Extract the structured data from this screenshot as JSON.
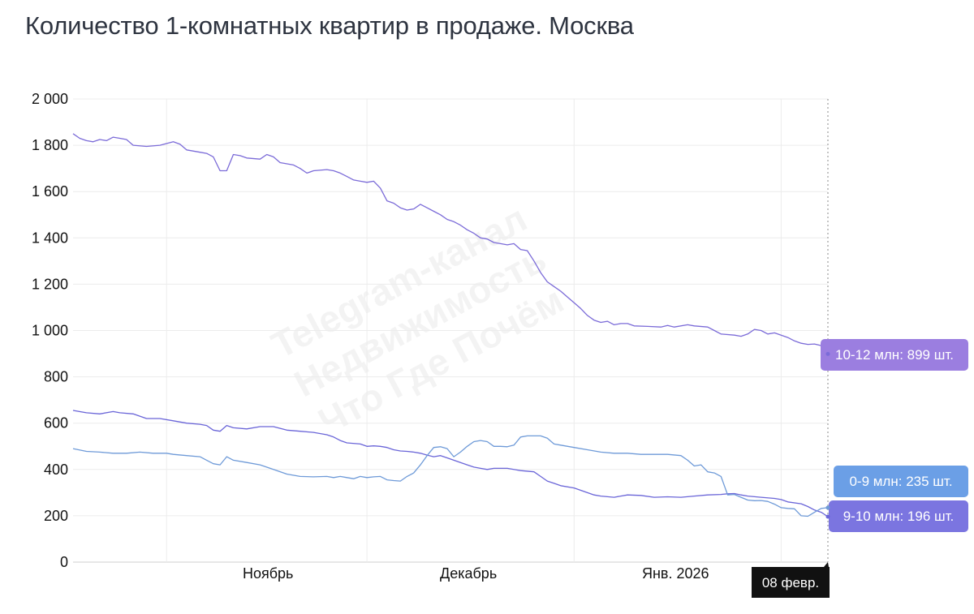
{
  "title": "Количество 1-комнатных квартир в продаже. Москва",
  "watermark": [
    "Telegram-канал",
    "Недвижимость",
    "Что Где Почём"
  ],
  "crosshair_label": "08 февр.",
  "chart_data": {
    "type": "line",
    "title": "Количество 1-комнатных квартир в продаже. Москва",
    "xlabel": "",
    "ylabel": "",
    "ylim": [
      0,
      2000
    ],
    "yticks": [
      "0",
      "200",
      "400",
      "600",
      "800",
      "1 000",
      "1 200",
      "1 400",
      "1 600",
      "1 800",
      "2 000"
    ],
    "xticks": [
      {
        "label": "Ноябрь",
        "date": "2025-11-01"
      },
      {
        "label": "Декабрь",
        "date": "2025-12-01"
      },
      {
        "label": "Янв. 2026",
        "date": "2026-01-01"
      }
    ],
    "x_start": "2025-10-18",
    "x_end": "2026-02-08",
    "grid": true,
    "series": [
      {
        "name": "10-12 млн",
        "color": "#7b6bd8",
        "label": "10-12 млн: 899 шт.",
        "label_color": "#9b7ee0",
        "points": [
          [
            "2025-10-18",
            1850
          ],
          [
            "2025-10-19",
            1830
          ],
          [
            "2025-10-20",
            1820
          ],
          [
            "2025-10-21",
            1815
          ],
          [
            "2025-10-22",
            1825
          ],
          [
            "2025-10-23",
            1820
          ],
          [
            "2025-10-24",
            1835
          ],
          [
            "2025-10-25",
            1830
          ],
          [
            "2025-10-26",
            1825
          ],
          [
            "2025-10-27",
            1800
          ],
          [
            "2025-10-29",
            1795
          ],
          [
            "2025-10-31",
            1800
          ],
          [
            "2025-11-02",
            1815
          ],
          [
            "2025-11-03",
            1805
          ],
          [
            "2025-11-04",
            1780
          ],
          [
            "2025-11-06",
            1770
          ],
          [
            "2025-11-07",
            1765
          ],
          [
            "2025-11-08",
            1750
          ],
          [
            "2025-11-09",
            1690
          ],
          [
            "2025-11-10",
            1690
          ],
          [
            "2025-11-11",
            1760
          ],
          [
            "2025-11-12",
            1755
          ],
          [
            "2025-11-13",
            1745
          ],
          [
            "2025-11-15",
            1740
          ],
          [
            "2025-11-16",
            1760
          ],
          [
            "2025-11-17",
            1750
          ],
          [
            "2025-11-18",
            1725
          ],
          [
            "2025-11-20",
            1715
          ],
          [
            "2025-11-21",
            1700
          ],
          [
            "2025-11-22",
            1680
          ],
          [
            "2025-11-23",
            1690
          ],
          [
            "2025-11-25",
            1695
          ],
          [
            "2025-11-26",
            1690
          ],
          [
            "2025-11-27",
            1680
          ],
          [
            "2025-11-28",
            1665
          ],
          [
            "2025-11-29",
            1650
          ],
          [
            "2025-11-30",
            1645
          ],
          [
            "2025-12-01",
            1640
          ],
          [
            "2025-12-02",
            1645
          ],
          [
            "2025-12-03",
            1615
          ],
          [
            "2025-12-04",
            1560
          ],
          [
            "2025-12-05",
            1550
          ],
          [
            "2025-12-06",
            1530
          ],
          [
            "2025-12-07",
            1520
          ],
          [
            "2025-12-08",
            1525
          ],
          [
            "2025-12-09",
            1545
          ],
          [
            "2025-12-10",
            1530
          ],
          [
            "2025-12-11",
            1515
          ],
          [
            "2025-12-12",
            1500
          ],
          [
            "2025-12-13",
            1480
          ],
          [
            "2025-12-14",
            1470
          ],
          [
            "2025-12-15",
            1455
          ],
          [
            "2025-12-16",
            1435
          ],
          [
            "2025-12-17",
            1420
          ],
          [
            "2025-12-18",
            1400
          ],
          [
            "2025-12-19",
            1395
          ],
          [
            "2025-12-20",
            1380
          ],
          [
            "2025-12-21",
            1375
          ],
          [
            "2025-12-22",
            1370
          ],
          [
            "2025-12-23",
            1375
          ],
          [
            "2025-12-24",
            1350
          ],
          [
            "2025-12-25",
            1345
          ],
          [
            "2025-12-26",
            1300
          ],
          [
            "2025-12-27",
            1250
          ],
          [
            "2025-12-28",
            1210
          ],
          [
            "2025-12-29",
            1190
          ],
          [
            "2025-12-30",
            1170
          ],
          [
            "2025-12-31",
            1145
          ],
          [
            "2026-01-01",
            1120
          ],
          [
            "2026-01-02",
            1095
          ],
          [
            "2026-01-03",
            1065
          ],
          [
            "2026-01-04",
            1045
          ],
          [
            "2026-01-05",
            1035
          ],
          [
            "2026-01-06",
            1040
          ],
          [
            "2026-01-07",
            1025
          ],
          [
            "2026-01-08",
            1030
          ],
          [
            "2026-01-09",
            1030
          ],
          [
            "2026-01-10",
            1020
          ],
          [
            "2026-01-12",
            1018
          ],
          [
            "2026-01-14",
            1015
          ],
          [
            "2026-01-15",
            1022
          ],
          [
            "2026-01-16",
            1015
          ],
          [
            "2026-01-18",
            1025
          ],
          [
            "2026-01-19",
            1020
          ],
          [
            "2026-01-21",
            1015
          ],
          [
            "2026-01-22",
            1000
          ],
          [
            "2026-01-23",
            985
          ],
          [
            "2026-01-25",
            980
          ],
          [
            "2026-01-26",
            975
          ],
          [
            "2026-01-27",
            985
          ],
          [
            "2026-01-28",
            1005
          ],
          [
            "2026-01-29",
            1000
          ],
          [
            "2026-01-30",
            985
          ],
          [
            "2026-01-31",
            990
          ],
          [
            "2026-02-01",
            980
          ],
          [
            "2026-02-02",
            970
          ],
          [
            "2026-02-03",
            955
          ],
          [
            "2026-02-04",
            945
          ],
          [
            "2026-02-05",
            940
          ],
          [
            "2026-02-06",
            942
          ],
          [
            "2026-02-07",
            935
          ],
          [
            "2026-02-08",
            899
          ]
        ]
      },
      {
        "name": "9-10 млн",
        "color": "#6a65d8",
        "label": "9-10 млн: 196 шт.",
        "label_color": "#7b75e0",
        "points": [
          [
            "2025-10-18",
            655
          ],
          [
            "2025-10-20",
            645
          ],
          [
            "2025-10-22",
            640
          ],
          [
            "2025-10-24",
            650
          ],
          [
            "2025-10-25",
            645
          ],
          [
            "2025-10-27",
            640
          ],
          [
            "2025-10-29",
            620
          ],
          [
            "2025-10-31",
            620
          ],
          [
            "2025-11-02",
            610
          ],
          [
            "2025-11-04",
            600
          ],
          [
            "2025-11-06",
            595
          ],
          [
            "2025-11-07",
            590
          ],
          [
            "2025-11-08",
            570
          ],
          [
            "2025-11-09",
            565
          ],
          [
            "2025-11-10",
            590
          ],
          [
            "2025-11-11",
            580
          ],
          [
            "2025-11-13",
            575
          ],
          [
            "2025-11-15",
            585
          ],
          [
            "2025-11-17",
            585
          ],
          [
            "2025-11-19",
            570
          ],
          [
            "2025-11-21",
            565
          ],
          [
            "2025-11-23",
            560
          ],
          [
            "2025-11-25",
            550
          ],
          [
            "2025-11-26",
            540
          ],
          [
            "2025-11-27",
            525
          ],
          [
            "2025-11-28",
            515
          ],
          [
            "2025-11-30",
            510
          ],
          [
            "2025-12-01",
            500
          ],
          [
            "2025-12-02",
            502
          ],
          [
            "2025-12-03",
            500
          ],
          [
            "2025-12-04",
            495
          ],
          [
            "2025-12-05",
            485
          ],
          [
            "2025-12-06",
            480
          ],
          [
            "2025-12-07",
            478
          ],
          [
            "2025-12-08",
            475
          ],
          [
            "2025-12-09",
            470
          ],
          [
            "2025-12-10",
            462
          ],
          [
            "2025-12-11",
            455
          ],
          [
            "2025-12-12",
            460
          ],
          [
            "2025-12-13",
            450
          ],
          [
            "2025-12-14",
            440
          ],
          [
            "2025-12-15",
            430
          ],
          [
            "2025-12-16",
            420
          ],
          [
            "2025-12-17",
            410
          ],
          [
            "2025-12-18",
            405
          ],
          [
            "2025-12-19",
            400
          ],
          [
            "2025-12-20",
            405
          ],
          [
            "2025-12-22",
            405
          ],
          [
            "2025-12-24",
            395
          ],
          [
            "2025-12-26",
            390
          ],
          [
            "2025-12-27",
            370
          ],
          [
            "2025-12-28",
            350
          ],
          [
            "2025-12-29",
            340
          ],
          [
            "2025-12-30",
            330
          ],
          [
            "2026-01-01",
            320
          ],
          [
            "2026-01-02",
            310
          ],
          [
            "2026-01-03",
            300
          ],
          [
            "2026-01-04",
            290
          ],
          [
            "2026-01-05",
            285
          ],
          [
            "2026-01-07",
            280
          ],
          [
            "2026-01-08",
            285
          ],
          [
            "2026-01-09",
            290
          ],
          [
            "2026-01-11",
            288
          ],
          [
            "2026-01-13",
            280
          ],
          [
            "2026-01-15",
            282
          ],
          [
            "2026-01-17",
            280
          ],
          [
            "2026-01-19",
            285
          ],
          [
            "2026-01-21",
            290
          ],
          [
            "2026-01-23",
            292
          ],
          [
            "2026-01-24",
            295
          ],
          [
            "2026-01-25",
            296
          ],
          [
            "2026-01-26",
            290
          ],
          [
            "2026-01-27",
            285
          ],
          [
            "2026-01-29",
            280
          ],
          [
            "2026-01-31",
            275
          ],
          [
            "2026-02-01",
            270
          ],
          [
            "2026-02-02",
            260
          ],
          [
            "2026-02-04",
            252
          ],
          [
            "2026-02-05",
            240
          ],
          [
            "2026-02-06",
            225
          ],
          [
            "2026-02-07",
            215
          ],
          [
            "2026-02-08",
            196
          ]
        ]
      },
      {
        "name": "0-9 млн",
        "color": "#6e9ad8",
        "label": "0-9 млн: 235 шт.",
        "label_color": "#6b9fe6",
        "points": [
          [
            "2025-10-18",
            490
          ],
          [
            "2025-10-20",
            478
          ],
          [
            "2025-10-22",
            475
          ],
          [
            "2025-10-24",
            470
          ],
          [
            "2025-10-26",
            470
          ],
          [
            "2025-10-28",
            475
          ],
          [
            "2025-10-30",
            470
          ],
          [
            "2025-11-01",
            470
          ],
          [
            "2025-11-02",
            465
          ],
          [
            "2025-11-04",
            460
          ],
          [
            "2025-11-06",
            455
          ],
          [
            "2025-11-07",
            440
          ],
          [
            "2025-11-08",
            425
          ],
          [
            "2025-11-09",
            420
          ],
          [
            "2025-11-10",
            455
          ],
          [
            "2025-11-11",
            440
          ],
          [
            "2025-11-13",
            430
          ],
          [
            "2025-11-15",
            420
          ],
          [
            "2025-11-17",
            400
          ],
          [
            "2025-11-19",
            380
          ],
          [
            "2025-11-21",
            370
          ],
          [
            "2025-11-23",
            368
          ],
          [
            "2025-11-25",
            370
          ],
          [
            "2025-11-26",
            365
          ],
          [
            "2025-11-27",
            370
          ],
          [
            "2025-11-28",
            365
          ],
          [
            "2025-11-29",
            360
          ],
          [
            "2025-11-30",
            370
          ],
          [
            "2025-12-01",
            365
          ],
          [
            "2025-12-02",
            368
          ],
          [
            "2025-12-03",
            370
          ],
          [
            "2025-12-04",
            355
          ],
          [
            "2025-12-05",
            352
          ],
          [
            "2025-12-06",
            350
          ],
          [
            "2025-12-07",
            370
          ],
          [
            "2025-12-08",
            385
          ],
          [
            "2025-12-09",
            420
          ],
          [
            "2025-12-10",
            460
          ],
          [
            "2025-12-11",
            495
          ],
          [
            "2025-12-12",
            498
          ],
          [
            "2025-12-13",
            490
          ],
          [
            "2025-12-14",
            455
          ],
          [
            "2025-12-15",
            475
          ],
          [
            "2025-12-16",
            500
          ],
          [
            "2025-12-17",
            520
          ],
          [
            "2025-12-18",
            525
          ],
          [
            "2025-12-19",
            520
          ],
          [
            "2025-12-20",
            500
          ],
          [
            "2025-12-21",
            500
          ],
          [
            "2025-12-22",
            498
          ],
          [
            "2025-12-23",
            505
          ],
          [
            "2025-12-24",
            540
          ],
          [
            "2025-12-25",
            545
          ],
          [
            "2025-12-26",
            545
          ],
          [
            "2025-12-27",
            545
          ],
          [
            "2025-12-28",
            535
          ],
          [
            "2025-12-29",
            510
          ],
          [
            "2025-12-30",
            505
          ],
          [
            "2026-01-01",
            495
          ],
          [
            "2026-01-03",
            485
          ],
          [
            "2026-01-05",
            475
          ],
          [
            "2026-01-07",
            470
          ],
          [
            "2026-01-09",
            470
          ],
          [
            "2026-01-11",
            465
          ],
          [
            "2026-01-13",
            465
          ],
          [
            "2026-01-15",
            465
          ],
          [
            "2026-01-17",
            460
          ],
          [
            "2026-01-18",
            440
          ],
          [
            "2026-01-19",
            415
          ],
          [
            "2026-01-20",
            420
          ],
          [
            "2026-01-21",
            390
          ],
          [
            "2026-01-22",
            385
          ],
          [
            "2026-01-23",
            370
          ],
          [
            "2026-01-24",
            290
          ],
          [
            "2026-01-25",
            292
          ],
          [
            "2026-01-26",
            280
          ],
          [
            "2026-01-27",
            268
          ],
          [
            "2026-01-28",
            265
          ],
          [
            "2026-01-29",
            266
          ],
          [
            "2026-01-30",
            262
          ],
          [
            "2026-01-31",
            250
          ],
          [
            "2026-02-01",
            235
          ],
          [
            "2026-02-02",
            232
          ],
          [
            "2026-02-03",
            230
          ],
          [
            "2026-02-04",
            200
          ],
          [
            "2026-02-05",
            198
          ],
          [
            "2026-02-06",
            215
          ],
          [
            "2026-02-07",
            232
          ],
          [
            "2026-02-08",
            235
          ]
        ]
      }
    ]
  }
}
